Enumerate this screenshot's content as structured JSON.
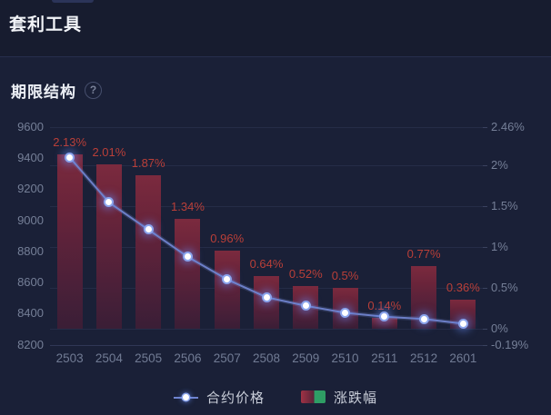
{
  "header": {
    "title": "套利工具"
  },
  "section": {
    "title": "期限结构",
    "help_glyph": "?"
  },
  "chart_data": {
    "type": "bar",
    "subtype": "bar+line combo, dual y-axis",
    "title": "期限结构",
    "categories": [
      "2503",
      "2504",
      "2505",
      "2506",
      "2507",
      "2508",
      "2509",
      "2510",
      "2511",
      "2512",
      "2601"
    ],
    "series": [
      {
        "name": "合约价格",
        "type": "line",
        "axis": "left",
        "values": [
          9405,
          9115,
          8940,
          8765,
          8620,
          8505,
          8450,
          8405,
          8380,
          8365,
          8335
        ]
      },
      {
        "name": "涨跌幅",
        "type": "bar",
        "axis": "right",
        "values": [
          2.13,
          2.01,
          1.87,
          1.34,
          0.96,
          0.64,
          0.52,
          0.5,
          0.14,
          0.77,
          0.36
        ],
        "labels": [
          "2.13%",
          "2.01%",
          "1.87%",
          "1.34%",
          "0.96%",
          "0.64%",
          "0.52%",
          "0.5%",
          "0.14%",
          "0.77%",
          "0.36%"
        ]
      }
    ],
    "left_axis": {
      "min": 8200,
      "max": 9600,
      "ticks": [
        {
          "label": "9600",
          "value": 9600
        },
        {
          "label": "9400",
          "value": 9400
        },
        {
          "label": "9200",
          "value": 9200
        },
        {
          "label": "9000",
          "value": 9000
        },
        {
          "label": "8800",
          "value": 8800
        },
        {
          "label": "8600",
          "value": 8600
        },
        {
          "label": "8400",
          "value": 8400
        },
        {
          "label": "8200",
          "value": 8200
        }
      ]
    },
    "right_axis": {
      "min": -0.19,
      "max": 2.46,
      "bar_baseline": 0,
      "ticks": [
        {
          "label": "2.46%",
          "value": 2.46
        },
        {
          "label": "2%",
          "value": 2
        },
        {
          "label": "1.5%",
          "value": 1.5
        },
        {
          "label": "1%",
          "value": 1
        },
        {
          "label": "0.5%",
          "value": 0.5
        },
        {
          "label": "0%",
          "value": 0
        },
        {
          "label": "-0.19%",
          "value": -0.19
        }
      ]
    },
    "legend": [
      {
        "label": "合约价格",
        "type": "line"
      },
      {
        "label": "涨跌幅",
        "type": "bar"
      }
    ],
    "grid": "horizontal gridlines at right-axis ticks",
    "legend_position": "bottom-center",
    "colors": {
      "background": "#1a2037",
      "bar_top": "#7b2a3e",
      "bar_bottom": "#3a1e36",
      "line": "#7084cf",
      "marker_core": "#ffffff",
      "marker_glow": "#8ba4ec",
      "data_label": "#b93f38",
      "axis_text": "#757f97",
      "grid_line": "#252c47",
      "legend_green": "#2f9d64",
      "legend_red": "#a03244"
    }
  }
}
